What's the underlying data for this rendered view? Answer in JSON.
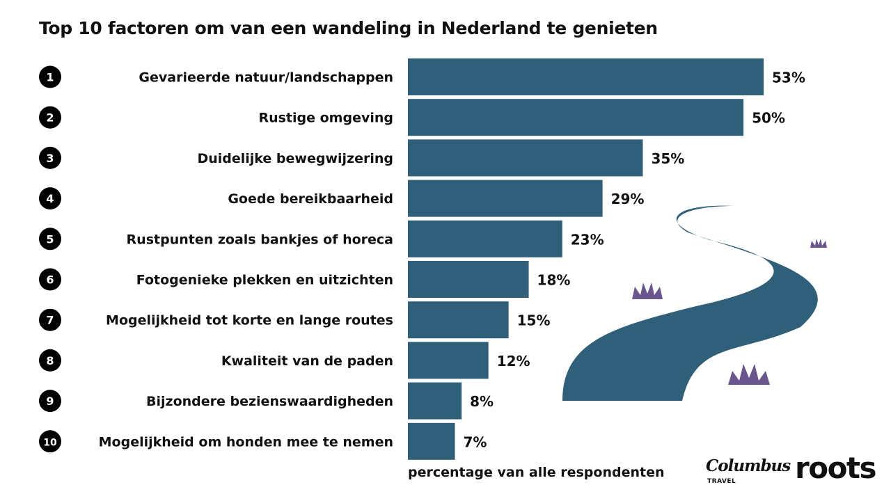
{
  "title": "Top 10 factoren om van een wandeling in Nederland te genieten",
  "chart_data": {
    "type": "bar",
    "orientation": "horizontal",
    "title": "Top 10 factoren om van een wandeling in Nederland te genieten",
    "xlabel": "percentage van alle respondenten",
    "ylabel": "",
    "xlim": [
      0,
      53
    ],
    "grid": false,
    "ranks": [
      "1",
      "2",
      "3",
      "4",
      "5",
      "6",
      "7",
      "8",
      "9",
      "10"
    ],
    "categories": [
      "Gevarieerde natuur/landschappen",
      "Rustige omgeving",
      "Duidelijke bewegwijzering",
      "Goede bereikbaarheid",
      "Rustpunten zoals bankjes of horeca",
      "Fotogenieke plekken en uitzichten",
      "Mogelijkheid tot korte en lange routes",
      "Kwaliteit van de paden",
      "Bijzondere bezienswaardigheden",
      "Mogelijkheid om honden mee te nemen"
    ],
    "values": [
      53,
      50,
      35,
      29,
      23,
      18,
      15,
      12,
      8,
      7
    ],
    "value_labels": [
      "53%",
      "50%",
      "35%",
      "29%",
      "23%",
      "18%",
      "15%",
      "12%",
      "8%",
      "7%"
    ],
    "bar_color": "#306079"
  },
  "decoration": {
    "path_color": "#306079",
    "grass_color": "#6a558e"
  },
  "logos": {
    "columbus": "Columbus",
    "columbus_sub": "TRAVEL",
    "roots": "roots"
  }
}
